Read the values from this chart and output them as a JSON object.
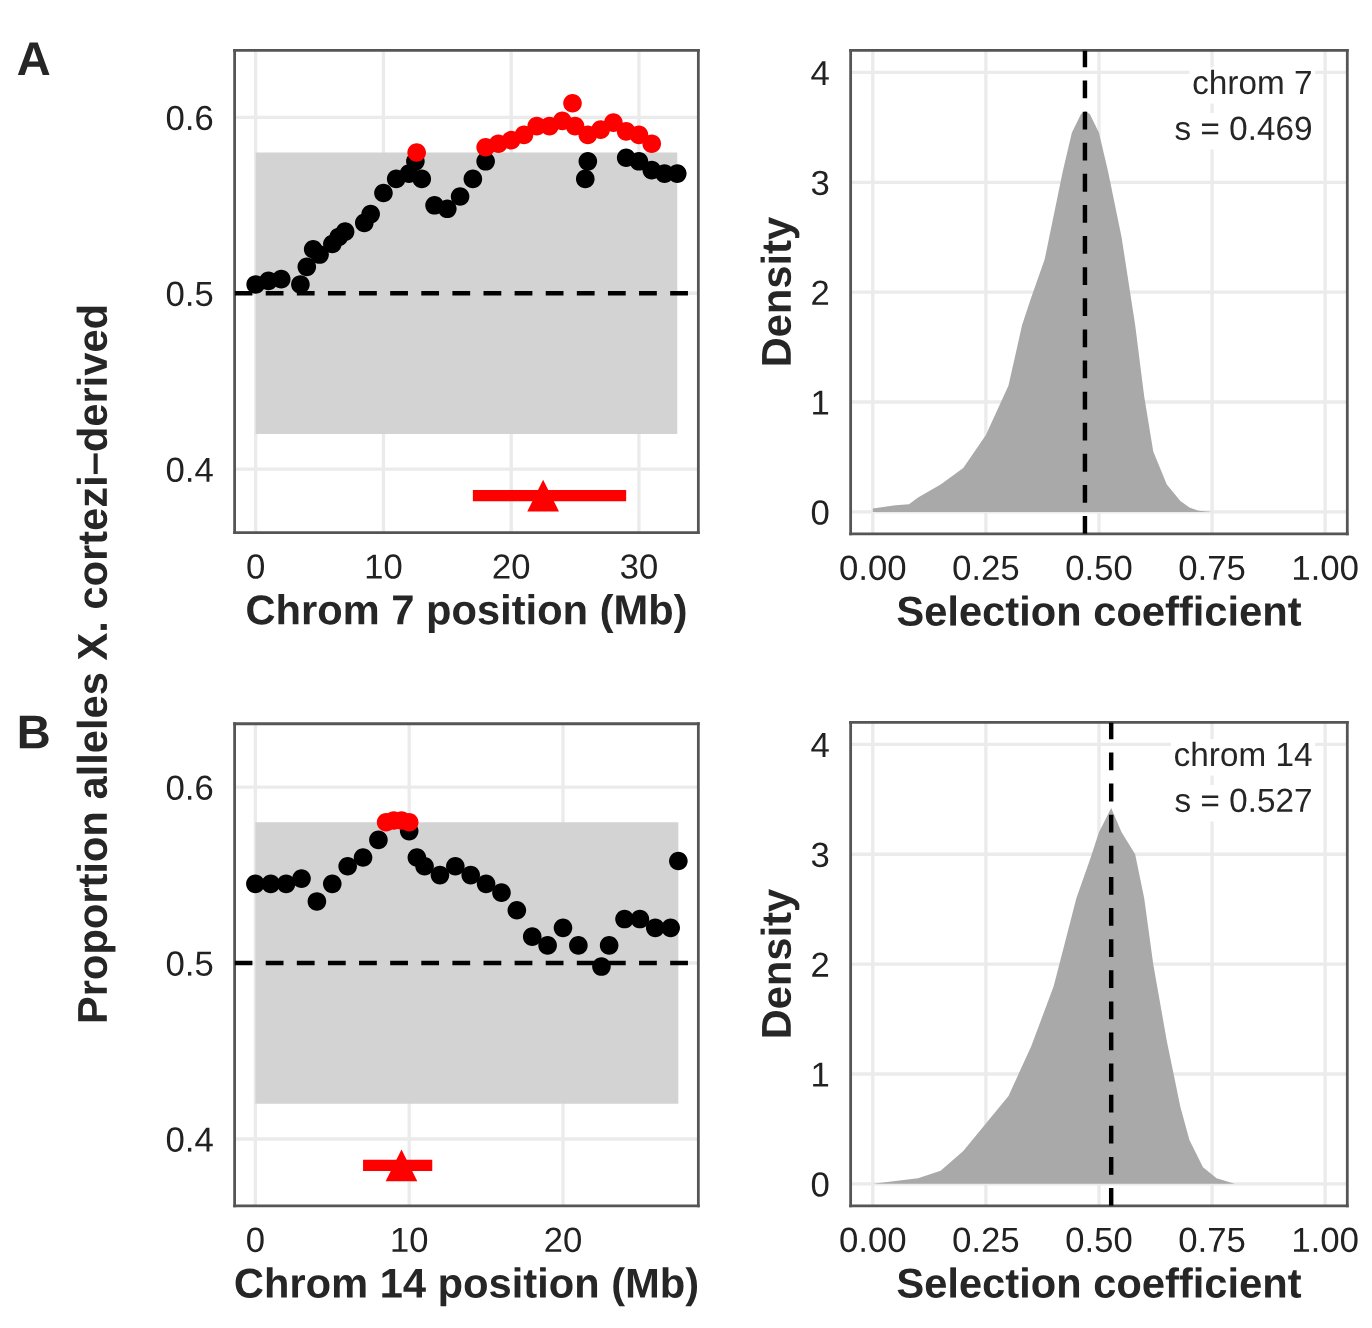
{
  "chart_data": [
    {
      "type": "scatter",
      "xlabel": "Chrom 7 position (Mb)",
      "ylabel": "Proportion alleles X. cortezi–derived",
      "annotations": [
        "A"
      ],
      "xlim": [
        -1.65,
        34.65
      ],
      "xticks": [
        0,
        10,
        20,
        30
      ],
      "ylim": [
        0.364,
        0.638
      ],
      "yticks": [
        0.4,
        0.5,
        0.6
      ],
      "grid": true,
      "marker": "circle",
      "bands": [
        {
          "axis": "y",
          "from": 0.42,
          "to": 0.58,
          "color": "#d3d3d3"
        }
      ],
      "ref_lines": [
        {
          "axis": "y",
          "value": 0.5,
          "color": "#000000",
          "line_style": "dashed"
        }
      ],
      "series": [
        {
          "color": "#000000",
          "x": [
            0,
            1,
            2,
            3.5,
            4,
            4.5,
            5,
            6,
            6.5,
            7,
            8.5,
            9,
            10,
            11,
            12,
            12.5,
            13,
            14,
            15,
            16,
            17,
            18,
            25.8,
            26,
            29,
            30,
            31,
            32,
            33
          ],
          "values": [
            0.505,
            0.507,
            0.508,
            0.505,
            0.515,
            0.525,
            0.522,
            0.528,
            0.532,
            0.535,
            0.54,
            0.545,
            0.557,
            0.565,
            0.568,
            0.575,
            0.565,
            0.55,
            0.548,
            0.555,
            0.565,
            0.575,
            0.565,
            0.575,
            0.577,
            0.575,
            0.57,
            0.568,
            0.568
          ]
        },
        {
          "color": "#ff0000",
          "x": [
            12.6,
            18,
            19,
            20,
            21,
            22,
            23,
            24,
            24.8,
            25,
            26,
            27,
            28,
            29,
            30,
            31
          ],
          "values": [
            0.58,
            0.583,
            0.585,
            0.587,
            0.59,
            0.595,
            0.595,
            0.598,
            0.608,
            0.595,
            0.59,
            0.593,
            0.597,
            0.592,
            0.59,
            0.585
          ]
        },
        {
          "color": "#ff0000",
          "marker": "triangle",
          "x": [
            22.5
          ],
          "values": [
            0.385
          ],
          "xerrors": [
            [
              17,
              29
            ]
          ]
        }
      ]
    },
    {
      "type": "area",
      "xlabel": "Selection coefficient",
      "ylabel": "Density",
      "annotations": [
        "chrom 7",
        "s = 0.469"
      ],
      "xlim": [
        -0.049,
        1.049
      ],
      "xticks": [
        {
          "value": 0,
          "label": "0.00"
        },
        0.25,
        {
          "value": 0.5,
          "label": "0.50"
        },
        0.75,
        {
          "value": 1,
          "label": "1.00"
        }
      ],
      "ylim": [
        -0.2,
        4.2
      ],
      "yticks": [
        0,
        1,
        2,
        3,
        4
      ],
      "grid": true,
      "ref_lines": [
        {
          "axis": "x",
          "value": 0.469,
          "color": "#000000",
          "line_style": "dashed"
        }
      ],
      "series": [
        {
          "color": "#a9a9a9",
          "x": [
            0,
            0.05,
            0.08,
            0.1,
            0.15,
            0.2,
            0.25,
            0.3,
            0.33,
            0.35,
            0.38,
            0.4,
            0.42,
            0.44,
            0.46,
            0.47,
            0.48,
            0.5,
            0.52,
            0.55,
            0.58,
            0.6,
            0.62,
            0.65,
            0.68,
            0.7,
            0.72,
            0.75
          ],
          "values": [
            0.03,
            0.06,
            0.07,
            0.13,
            0.25,
            0.4,
            0.7,
            1.15,
            1.7,
            1.95,
            2.3,
            2.7,
            3.1,
            3.45,
            3.62,
            3.65,
            3.62,
            3.45,
            3.1,
            2.5,
            1.7,
            1.05,
            0.55,
            0.25,
            0.1,
            0.04,
            0.01,
            0
          ]
        }
      ]
    },
    {
      "type": "scatter",
      "xlabel": "Chrom 14 position (Mb)",
      "annotations": [
        "B"
      ],
      "xlim": [
        -1.35,
        28.8
      ],
      "xticks": [
        0,
        10,
        20
      ],
      "ylim": [
        0.362,
        0.636
      ],
      "yticks": [
        0.4,
        0.5,
        0.6
      ],
      "grid": true,
      "marker": "circle",
      "bands": [
        {
          "axis": "y",
          "from": 0.42,
          "to": 0.58,
          "color": "#d3d3d3"
        }
      ],
      "ref_lines": [
        {
          "axis": "y",
          "value": 0.5,
          "color": "#000000",
          "line_style": "dashed"
        }
      ],
      "series": [
        {
          "color": "#000000",
          "x": [
            0,
            1,
            2,
            3,
            4,
            5,
            6,
            7,
            8,
            10,
            10.5,
            11,
            12,
            13,
            14,
            15,
            16,
            17,
            18,
            19,
            20,
            21,
            22.5,
            23,
            24,
            25,
            26,
            27,
            27.5
          ],
          "values": [
            0.545,
            0.545,
            0.545,
            0.548,
            0.535,
            0.545,
            0.555,
            0.56,
            0.57,
            0.575,
            0.56,
            0.555,
            0.55,
            0.555,
            0.55,
            0.545,
            0.54,
            0.53,
            0.515,
            0.51,
            0.52,
            0.51,
            0.498,
            0.51,
            0.525,
            0.525,
            0.52,
            0.52,
            0.558
          ]
        },
        {
          "color": "#ff0000",
          "x": [
            8.5,
            9,
            9.5,
            10
          ],
          "values": [
            0.58,
            0.581,
            0.581,
            0.58
          ]
        },
        {
          "color": "#ff0000",
          "marker": "triangle",
          "x": [
            9.5
          ],
          "values": [
            0.385
          ],
          "xerrors": [
            [
              7,
              11.5
            ]
          ]
        }
      ]
    },
    {
      "type": "area",
      "xlabel": "Selection coefficient",
      "ylabel": "Density",
      "annotations": [
        "chrom 14",
        "s = 0.527"
      ],
      "xlim": [
        -0.049,
        1.049
      ],
      "xticks": [
        {
          "value": 0,
          "label": "0.00"
        },
        0.25,
        {
          "value": 0.5,
          "label": "0.50"
        },
        0.75,
        {
          "value": 1,
          "label": "1.00"
        }
      ],
      "ylim": [
        -0.2,
        4.2
      ],
      "yticks": [
        0,
        1,
        2,
        3,
        4
      ],
      "grid": true,
      "ref_lines": [
        {
          "axis": "x",
          "value": 0.527,
          "color": "#000000",
          "line_style": "dashed"
        }
      ],
      "series": [
        {
          "color": "#a9a9a9",
          "x": [
            0,
            0.1,
            0.15,
            0.2,
            0.25,
            0.3,
            0.35,
            0.4,
            0.45,
            0.48,
            0.5,
            0.527,
            0.55,
            0.58,
            0.6,
            0.62,
            0.65,
            0.68,
            0.7,
            0.73,
            0.76,
            0.8
          ],
          "values": [
            0,
            0.05,
            0.12,
            0.3,
            0.55,
            0.8,
            1.25,
            1.8,
            2.6,
            2.95,
            3.2,
            3.42,
            3.2,
            3.0,
            2.6,
            2.0,
            1.3,
            0.7,
            0.4,
            0.15,
            0.05,
            0
          ]
        }
      ]
    }
  ]
}
